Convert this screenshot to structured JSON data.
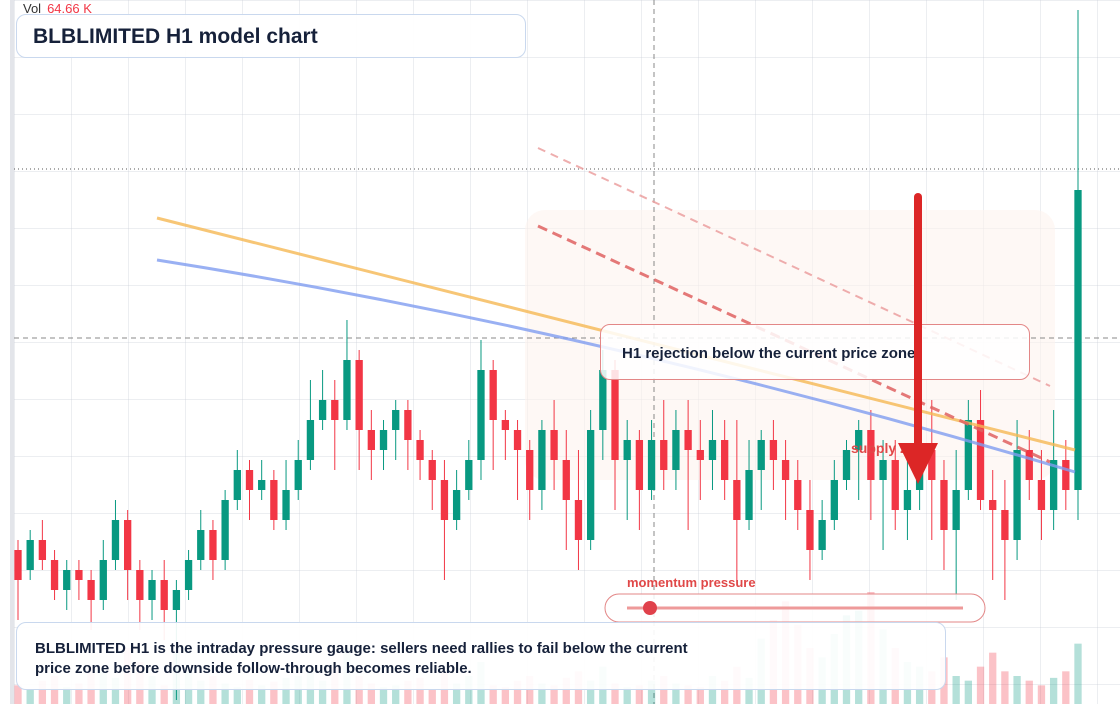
{
  "chart_data": {
    "type": "candlestick",
    "title": "BLBLIMITED H1 model chart",
    "volume_title": "Vol",
    "last_volume_label": "64.66 K",
    "open": [
      115,
      113,
      116,
      114,
      111,
      113,
      112,
      110,
      114,
      118,
      113,
      110,
      112,
      109,
      111,
      114,
      117,
      114,
      120,
      123,
      121,
      122,
      118,
      121,
      124,
      128,
      130,
      128,
      134,
      127,
      125,
      127,
      129,
      126,
      124,
      122,
      118,
      121,
      124,
      133,
      128,
      127,
      125,
      121,
      127,
      124,
      120,
      116,
      127,
      133,
      124,
      126,
      121,
      126,
      123,
      127,
      125,
      124,
      126,
      122,
      118,
      123,
      126,
      124,
      122,
      119,
      115,
      118,
      122,
      125,
      127,
      122,
      124,
      119,
      121,
      125,
      122,
      117,
      121,
      128,
      120,
      119,
      116,
      125,
      122,
      119,
      124,
      121
    ],
    "high": [
      116,
      117,
      118,
      115,
      114,
      114,
      113,
      116,
      120,
      119,
      114,
      113,
      114,
      112,
      115,
      119,
      118,
      121,
      125,
      124,
      124,
      123,
      124,
      126,
      132,
      133,
      132,
      138,
      135,
      129,
      128,
      130,
      130,
      127,
      125,
      124,
      123,
      126,
      136,
      134,
      129,
      128,
      126,
      128,
      130,
      127,
      125,
      129,
      135,
      134,
      128,
      127,
      128,
      130,
      129,
      130,
      128,
      129,
      128,
      128,
      126,
      127,
      128,
      126,
      124,
      122,
      120,
      124,
      126,
      128,
      129,
      126,
      126,
      124,
      127,
      130,
      124,
      125,
      130,
      131,
      123,
      122,
      128,
      127,
      125,
      129,
      126,
      169
    ],
    "low": [
      108,
      112,
      113,
      110,
      109,
      110,
      107,
      109,
      113,
      110,
      107,
      108,
      106,
      100,
      110,
      113,
      112,
      113,
      119,
      118,
      120,
      117,
      117,
      120,
      123,
      127,
      123,
      127,
      123,
      122,
      123,
      124,
      123,
      122,
      119,
      112,
      117,
      120,
      122,
      123,
      124,
      120,
      118,
      119,
      121,
      115,
      113,
      115,
      124,
      119,
      118,
      117,
      120,
      121,
      121,
      117,
      120,
      121,
      120,
      112,
      117,
      119,
      121,
      118,
      117,
      112,
      114,
      117,
      121,
      120,
      118,
      115,
      117,
      116,
      119,
      116,
      113,
      110,
      120,
      119,
      112,
      110,
      114,
      120,
      116,
      117,
      119,
      118
    ],
    "close": [
      112,
      116,
      114,
      111,
      113,
      112,
      110,
      114,
      118,
      113,
      110,
      112,
      109,
      111,
      114,
      117,
      114,
      120,
      123,
      121,
      122,
      118,
      121,
      124,
      128,
      130,
      128,
      134,
      127,
      125,
      127,
      129,
      126,
      124,
      122,
      118,
      121,
      124,
      133,
      128,
      127,
      125,
      121,
      127,
      124,
      120,
      116,
      127,
      133,
      124,
      126,
      121,
      126,
      123,
      127,
      125,
      124,
      126,
      122,
      118,
      123,
      126,
      124,
      122,
      119,
      115,
      118,
      122,
      125,
      127,
      122,
      124,
      119,
      121,
      125,
      122,
      117,
      121,
      128,
      120,
      119,
      116,
      125,
      122,
      119,
      124,
      121,
      151
    ],
    "volume": [
      20,
      15,
      25,
      30,
      18,
      22,
      40,
      35,
      28,
      60,
      45,
      30,
      20,
      55,
      35,
      25,
      30,
      22,
      18,
      26,
      20,
      24,
      28,
      30,
      35,
      25,
      40,
      60,
      30,
      22,
      18,
      20,
      25,
      28,
      15,
      35,
      22,
      30,
      45,
      20,
      18,
      25,
      30,
      22,
      20,
      28,
      35,
      25,
      40,
      22,
      18,
      20,
      25,
      30,
      22,
      20,
      18,
      30,
      25,
      40,
      28,
      70,
      90,
      110,
      85,
      60,
      50,
      75,
      95,
      100,
      120,
      80,
      60,
      45,
      40,
      35,
      50,
      30,
      25,
      40,
      55,
      35,
      30,
      25,
      20,
      28,
      35,
      64.66
    ],
    "ylim": [
      100,
      170
    ],
    "volume_ylim": [
      0,
      150
    ],
    "up_color": "#089981",
    "down_color": "#f23645"
  },
  "annotations": {
    "callout": "H1 rejection below the current price zone",
    "zone_label": "supply zone",
    "gauge_label": "momentum pressure",
    "caption": "BLBLIMITED H1 is the intraday pressure gauge: sellers need rallies to fail below the current price zone before downside follow-through becomes reliable."
  }
}
